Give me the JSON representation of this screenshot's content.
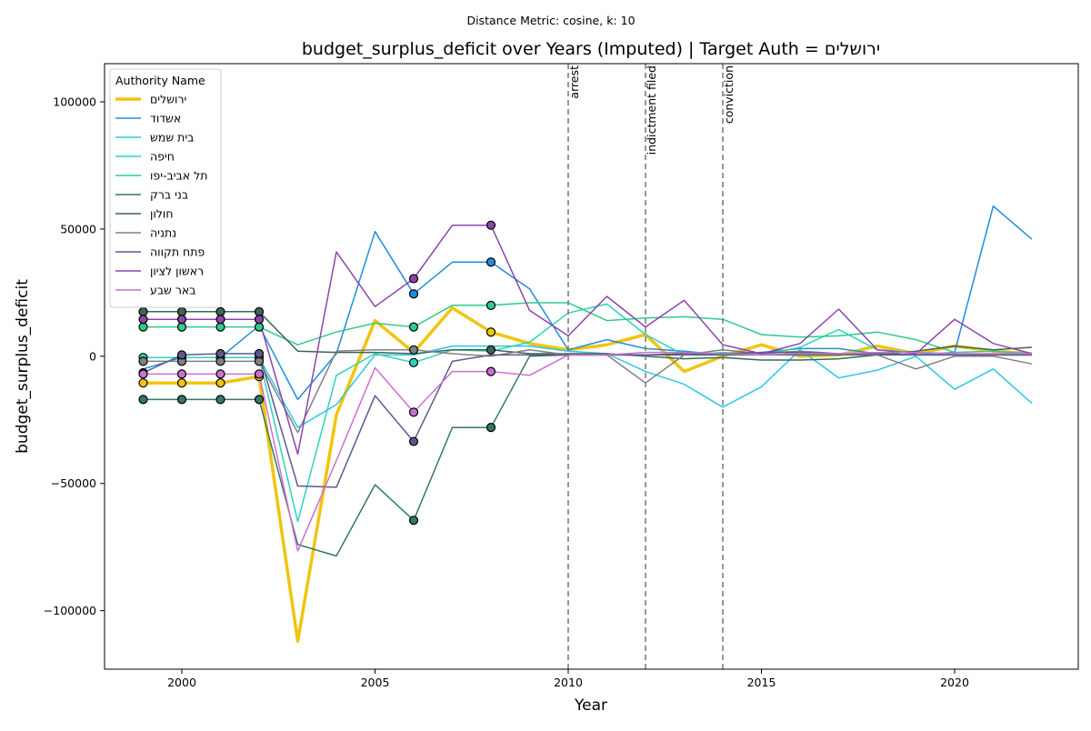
{
  "chart_data": {
    "type": "line",
    "suptitle": "Distance Metric: cosine, k: 10",
    "title": "budget_surplus_deficit over Years (Imputed) | Target Auth = ירושלים",
    "xlabel": "Year",
    "ylabel": "budget_surplus_deficit",
    "xlim": [
      1998,
      2023.2
    ],
    "ylim": [
      -123000,
      115000
    ],
    "xticks": [
      2000,
      2005,
      2010,
      2015,
      2020
    ],
    "yticks": [
      -100000,
      -50000,
      0,
      50000,
      100000
    ],
    "grid": false,
    "legend": {
      "title": "Authority Name",
      "placement": "top-left"
    },
    "events": [
      {
        "year": 2010,
        "label": "arrest"
      },
      {
        "year": 2012,
        "label": "indictment filed"
      },
      {
        "year": 2014,
        "label": "conviction"
      }
    ],
    "x": [
      1999,
      2000,
      2001,
      2002,
      2003,
      2004,
      2005,
      2006,
      2007,
      2008,
      2009,
      2010,
      2011,
      2012,
      2013,
      2014,
      2015,
      2016,
      2017,
      2018,
      2019,
      2020,
      2021,
      2022
    ],
    "series": [
      {
        "name": "ירושלים",
        "color": "#f1c40f",
        "width": 3.5,
        "imputed_years": [
          1999,
          2000,
          2001,
          2002,
          2008
        ],
        "values": [
          -10500,
          -10500,
          -10500,
          -8000,
          -112000,
          -23000,
          14000,
          1500,
          19000,
          9500,
          5000,
          2500,
          4500,
          8500,
          -6000,
          0,
          4500,
          0,
          500,
          4000,
          1000,
          4000,
          2000,
          1000
        ]
      },
      {
        "name": "אשדוד",
        "color": "#1f8ee0",
        "width": 1.5,
        "imputed_years": [
          2006,
          2008
        ],
        "values": [
          -5000,
          -500,
          -500,
          12000,
          -17000,
          1000,
          49000,
          24500,
          37000,
          37000,
          26500,
          2500,
          6500,
          3000,
          2000,
          500,
          1500,
          3000,
          3000,
          1000,
          500,
          1500,
          59000,
          46000
        ]
      },
      {
        "name": "בית שמש",
        "color": "#2bc7e8",
        "width": 1.5,
        "imputed_years": [],
        "values": [
          -500,
          -500,
          -500,
          -500,
          -28000,
          -19000,
          500,
          500,
          4000,
          4000,
          4000,
          2000,
          1000,
          -6000,
          -11000,
          -20000,
          -12000,
          2500,
          -8500,
          -5500,
          0,
          -13000,
          -5000,
          -18500
        ]
      },
      {
        "name": "חיפה",
        "color": "#2ed3bc",
        "width": 1.5,
        "imputed_years": [
          1999,
          2000,
          2001,
          2002,
          2006
        ],
        "values": [
          -500,
          -500,
          -500,
          -500,
          -65000,
          -7500,
          1000,
          -2500,
          2500,
          2000,
          5500,
          17000,
          20500,
          8500,
          500,
          1500,
          500,
          3500,
          10500,
          2500,
          1500,
          500,
          500,
          500
        ]
      },
      {
        "name": "תל אביב-יפו",
        "color": "#2ecc8a",
        "width": 1.5,
        "imputed_years": [
          1999,
          2000,
          2001,
          2002,
          2006,
          2008
        ],
        "values": [
          11500,
          11500,
          11500,
          11500,
          4500,
          9500,
          13000,
          11500,
          20000,
          20000,
          21000,
          21000,
          14000,
          15000,
          15500,
          14500,
          8500,
          7500,
          8000,
          9500,
          6500,
          1500,
          2000,
          1000
        ]
      },
      {
        "name": "בני ברק",
        "color": "#33796a",
        "width": 1.5,
        "imputed_years": [
          1999,
          2000,
          2001,
          2002,
          2006,
          2008
        ],
        "values": [
          -17000,
          -17000,
          -17000,
          -17000,
          -74000,
          -78500,
          -50500,
          -64500,
          -28000,
          -28000,
          0,
          500,
          500,
          500,
          500,
          500,
          500,
          500,
          500,
          500,
          500,
          500,
          500,
          500
        ]
      },
      {
        "name": "חולון",
        "color": "#3e6558",
        "width": 1.5,
        "imputed_years": [
          1999,
          2000,
          2001,
          2002,
          2008
        ],
        "values": [
          17500,
          17500,
          17500,
          17500,
          2000,
          1500,
          1500,
          1000,
          2500,
          2500,
          1000,
          1000,
          1000,
          0,
          -1000,
          -500,
          -1500,
          -1500,
          -1000,
          500,
          2000,
          4000,
          2500,
          3500
        ]
      },
      {
        "name": "נתניה",
        "color": "#808080",
        "width": 1.5,
        "imputed_years": [
          1999,
          2000,
          2001,
          2002,
          2006
        ],
        "values": [
          -2000,
          -2000,
          -2000,
          -2000,
          -30000,
          2000,
          2500,
          2500,
          1000,
          0,
          2500,
          500,
          500,
          -10500,
          500,
          2500,
          1000,
          2000,
          1000,
          500,
          -5000,
          0,
          0,
          -3000
        ]
      },
      {
        "name": "פתח תקווה",
        "color": "#5a5a8f",
        "width": 1.5,
        "imputed_years": [
          1999,
          2000,
          2001,
          2002,
          2006
        ],
        "values": [
          -6500,
          500,
          1000,
          1000,
          -51000,
          -51500,
          -15500,
          -33500,
          -2000,
          500,
          500,
          500,
          500,
          500,
          1000,
          1000,
          1500,
          1500,
          1000,
          1000,
          500,
          500,
          500,
          500
        ]
      },
      {
        "name": "ראשון לציון",
        "color": "#8e44ad",
        "width": 1.5,
        "imputed_years": [
          1999,
          2000,
          2001,
          2002,
          2006,
          2008
        ],
        "values": [
          14500,
          14500,
          14500,
          14500,
          -38500,
          41000,
          19500,
          30500,
          51500,
          51500,
          18000,
          8000,
          23500,
          11500,
          22000,
          4500,
          1000,
          5000,
          18500,
          2500,
          1000,
          14500,
          5000,
          1000
        ]
      },
      {
        "name": "באר שבע",
        "color": "#cc6fd1",
        "width": 1.5,
        "imputed_years": [
          1999,
          2000,
          2001,
          2002,
          2006,
          2008
        ],
        "values": [
          -7000,
          -7000,
          -7000,
          -7000,
          -76500,
          -41000,
          -4500,
          -22000,
          -6000,
          -6000,
          -7500,
          500,
          500,
          1500,
          1500,
          1000,
          500,
          1000,
          1000,
          1500,
          1500,
          1000,
          1000,
          1000
        ]
      }
    ]
  }
}
